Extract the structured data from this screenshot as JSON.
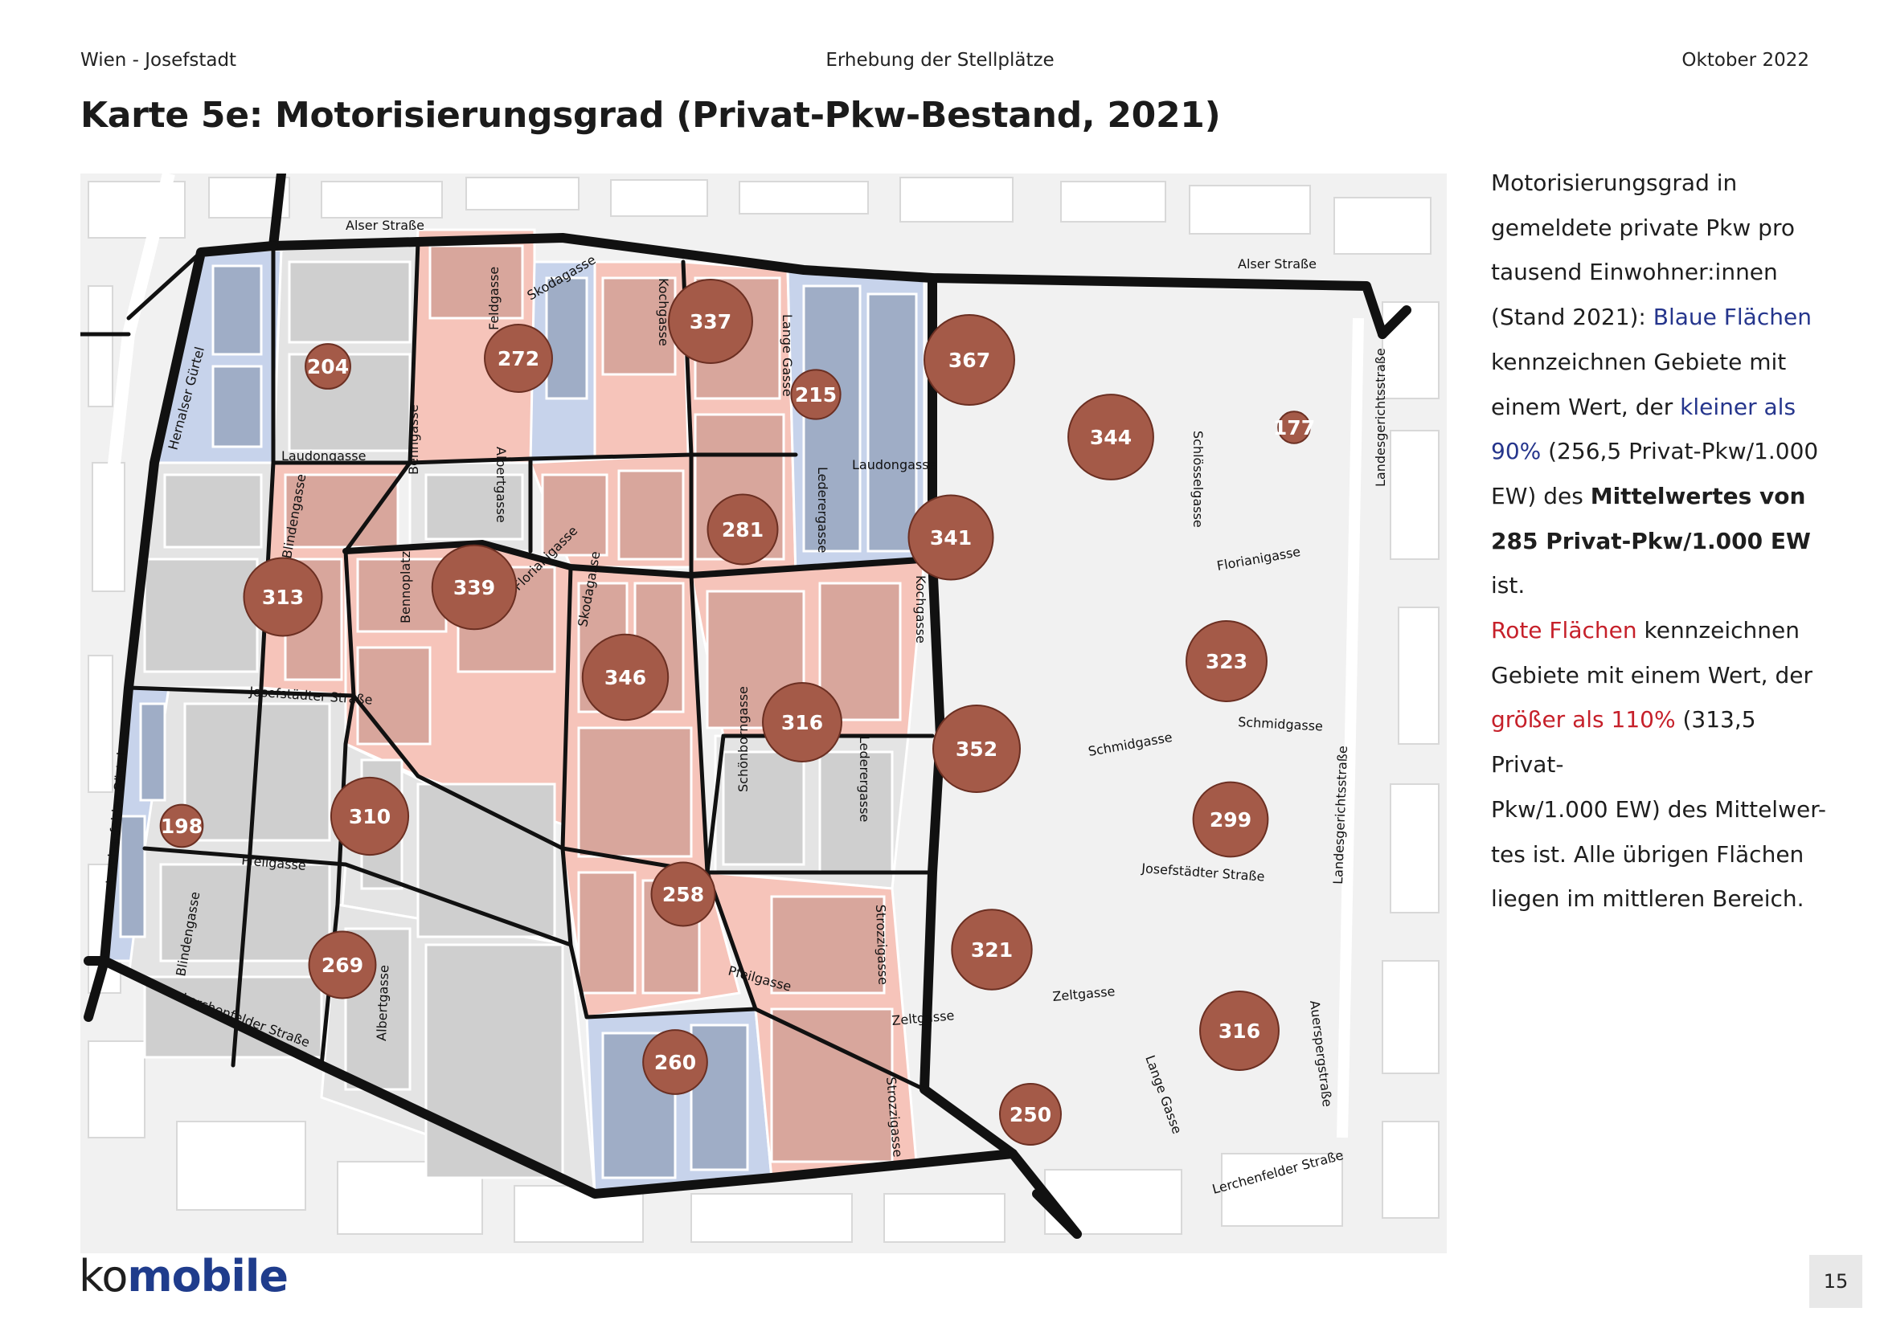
{
  "header": {
    "left": "Wien - Josefstadt",
    "center": "Erhebung der Stellplätze",
    "right": "Oktober 2022"
  },
  "title": "Karte 5e: Motorisierungsgrad (Privat-Pkw-Bestand, 2021)",
  "legend": {
    "l1": "Motorisierungsgrad in",
    "l2": "gemeldete private Pkw pro",
    "l3": "tausend Einwohner:innen",
    "l4a": "(Stand 2021): ",
    "l4b": "Blaue Flächen",
    "l5": "kennzeichnen Gebiete mit",
    "l6a": "einem Wert, der ",
    "l6b": "kleiner als",
    "l7a": "90%",
    "l7b": " (256,5 Privat-Pkw/1.000",
    "l8a": "EW) des ",
    "l8b": "Mittelwertes von",
    "l9a": "285 Privat-Pkw/1.000 EW",
    "l9b": " ist.",
    "l10a": "Rote Flächen",
    "l10b": " kennzeichnen",
    "l11": "Gebiete mit einem Wert, der",
    "l12a": "größer als 110%",
    "l12b": " (313,5 Privat-",
    "l13": "Pkw/1.000 EW) des Mittelwer-",
    "l14": "tes ist. Alle übrigen Flächen",
    "l15": "liegen im mittleren Bereich."
  },
  "colors": {
    "blue_area": "#b3c3e0",
    "red_area": "#f3b8ad",
    "neutral_area": "#dcdcdc",
    "circle": "#a45a48",
    "boundary": "#111111"
  },
  "map": {
    "streets": [
      "Alser Straße",
      "Alser Straße",
      "Skodagasse",
      "Feldgasse",
      "Kochgasse",
      "Lange Gasse",
      "Hernalser Gürtel",
      "Landesgerichtsstraße",
      "Laudongasse",
      "Benngasse",
      "Albertgasse",
      "Laudongasse",
      "Lederergasse",
      "Schlösselgasse",
      "Blindengasse",
      "Bennoplatz",
      "Florianigasse",
      "Skodagasse",
      "Florianigasse",
      "Kochgasse",
      "Josefstädter Straße",
      "Schönborngasse",
      "Lederergasse",
      "Schmidgasse",
      "Schmidgasse",
      "Landesgerichtsstraße",
      "Lerchenfelder Gürtel",
      "Pfeilgasse",
      "Josefstädter Straße",
      "Blindengasse",
      "Strozzigasse",
      "Albertgasse",
      "Pfeilgasse",
      "Zeltgasse",
      "Zeltgasse",
      "Auerspergstraße",
      "Lerchenfelder Straße",
      "Lange Gasse",
      "Strozzigasse",
      "Lerchenfelder Straße"
    ],
    "districts": [
      {
        "value": "204",
        "category": "blue"
      },
      {
        "value": "272",
        "category": "neutral"
      },
      {
        "value": "337",
        "category": "red"
      },
      {
        "value": "215",
        "category": "blue"
      },
      {
        "value": "367",
        "category": "red"
      },
      {
        "value": "344",
        "category": "red"
      },
      {
        "value": "177",
        "category": "blue"
      },
      {
        "value": "313",
        "category": "neutral"
      },
      {
        "value": "339",
        "category": "red"
      },
      {
        "value": "281",
        "category": "neutral"
      },
      {
        "value": "341",
        "category": "red"
      },
      {
        "value": "346",
        "category": "red"
      },
      {
        "value": "316",
        "category": "red"
      },
      {
        "value": "352",
        "category": "red"
      },
      {
        "value": "323",
        "category": "red"
      },
      {
        "value": "198",
        "category": "blue"
      },
      {
        "value": "310",
        "category": "neutral"
      },
      {
        "value": "258",
        "category": "neutral"
      },
      {
        "value": "299",
        "category": "neutral"
      },
      {
        "value": "269",
        "category": "neutral"
      },
      {
        "value": "321",
        "category": "red"
      },
      {
        "value": "260",
        "category": "neutral"
      },
      {
        "value": "250",
        "category": "blue"
      },
      {
        "value": "316",
        "category": "red"
      }
    ]
  },
  "logo": {
    "part1": "ko",
    "part2": "mobile"
  },
  "page_number": "15"
}
